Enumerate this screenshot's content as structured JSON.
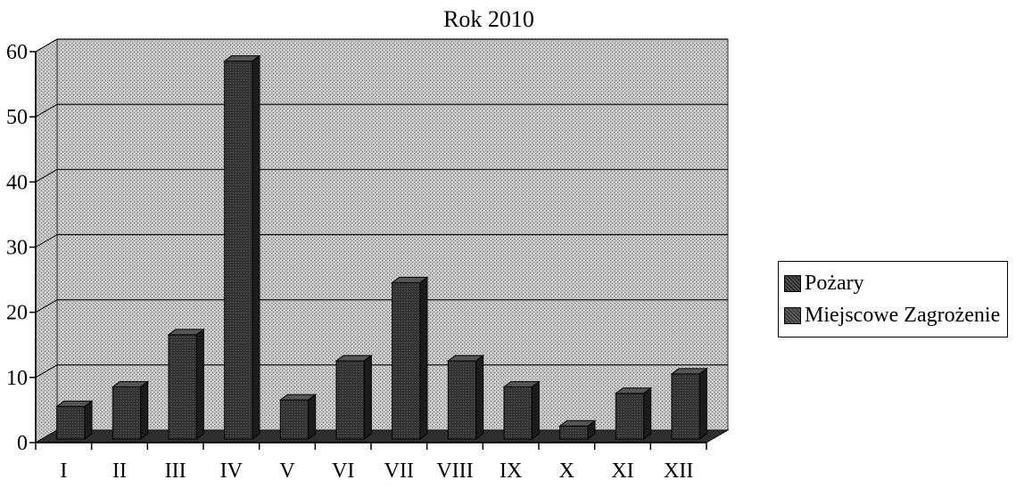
{
  "chart_data": {
    "type": "bar",
    "title": "Rok 2010",
    "categories": [
      "I",
      "II",
      "III",
      "IV",
      "V",
      "VI",
      "VII",
      "VIII",
      "IX",
      "X",
      "XI",
      "XII"
    ],
    "series": [
      {
        "name": "Pożary",
        "values": [
          0,
          0,
          0,
          0,
          0,
          0,
          0,
          0,
          0,
          0,
          0,
          0
        ],
        "color": "#2a2a2a"
      },
      {
        "name": "Miejscowe Zagrożenie",
        "values": [
          5,
          8,
          16,
          58,
          6,
          12,
          24,
          12,
          8,
          2,
          7,
          10
        ],
        "color": "#3a3a3a"
      }
    ],
    "ylim": [
      0,
      60
    ],
    "yticks": [
      0,
      10,
      20,
      30,
      40,
      50,
      60
    ],
    "grid": true,
    "legend_position": "right",
    "xlabel": "",
    "ylabel": ""
  }
}
